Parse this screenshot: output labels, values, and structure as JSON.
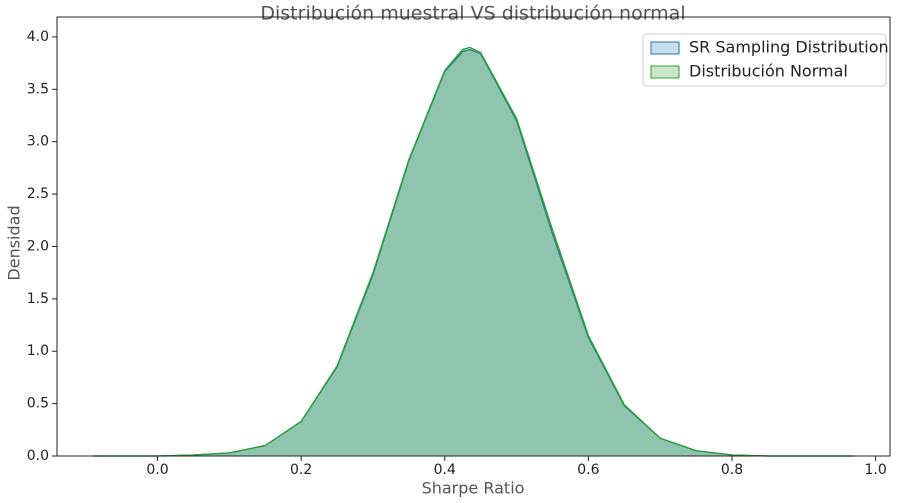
{
  "chart_data": {
    "type": "area",
    "title": "Distribución muestral VS distribución normal",
    "x_label": "Sharpe Ratio",
    "y_label": "Densidad",
    "x": [
      -0.09,
      0.0,
      0.05,
      0.1,
      0.15,
      0.2,
      0.25,
      0.3,
      0.35,
      0.4,
      0.425,
      0.435,
      0.45,
      0.5,
      0.55,
      0.6,
      0.65,
      0.7,
      0.75,
      0.8,
      0.85,
      0.9,
      0.97
    ],
    "series": [
      {
        "name": "SR Sampling Distribution",
        "color": "#1f77b4",
        "values": [
          0.0,
          0.0,
          0.01,
          0.03,
          0.1,
          0.33,
          0.85,
          1.73,
          2.82,
          3.67,
          3.86,
          3.88,
          3.84,
          3.2,
          2.12,
          1.13,
          0.48,
          0.17,
          0.05,
          0.01,
          0.0,
          0.0,
          0.0
        ]
      },
      {
        "name": "Distribución Normal",
        "color": "#2ca02c",
        "values": [
          0.0,
          0.0,
          0.01,
          0.03,
          0.1,
          0.33,
          0.86,
          1.75,
          2.83,
          3.68,
          3.88,
          3.9,
          3.85,
          3.22,
          2.16,
          1.15,
          0.49,
          0.17,
          0.05,
          0.01,
          0.0,
          0.0,
          0.0
        ]
      }
    ],
    "xlim": [
      -0.14,
      1.02
    ],
    "ylim": [
      0,
      4.19
    ],
    "xticks": [
      {
        "value": 0,
        "label": "0.0"
      },
      0.2,
      0.4,
      0.6,
      0.8,
      {
        "value": 1,
        "label": "1.0"
      }
    ],
    "yticks": [
      {
        "value": 0,
        "label": "0.0"
      },
      0.5,
      {
        "value": 1,
        "label": "1.0"
      },
      1.5,
      {
        "value": 2,
        "label": "2.0"
      },
      2.5,
      {
        "value": 3,
        "label": "3.0"
      },
      3.5,
      {
        "value": 4,
        "label": "4.0"
      }
    ],
    "legend": "upper right",
    "grid": false
  }
}
